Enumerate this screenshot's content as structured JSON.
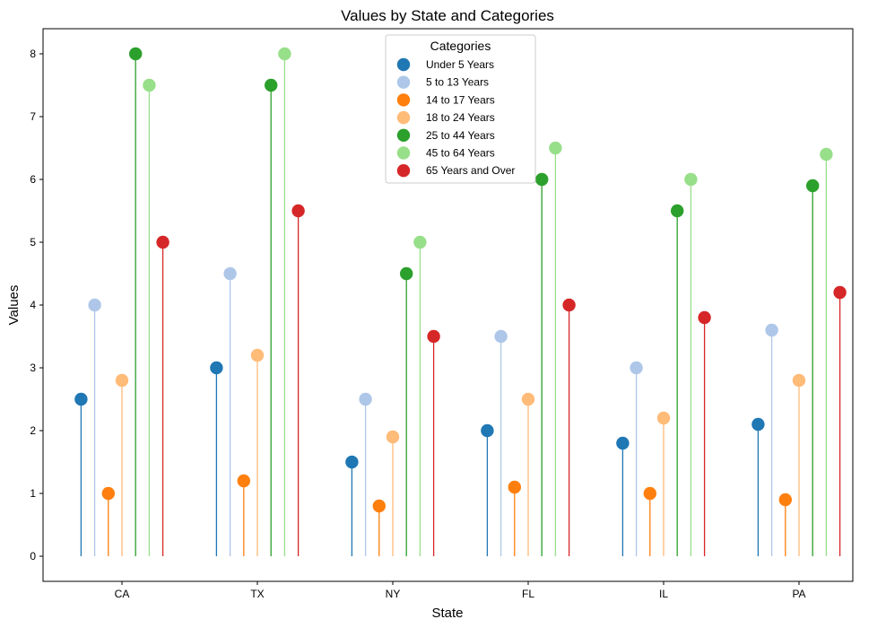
{
  "chart_data": {
    "type": "lollipop",
    "title": "Values by State and Categories",
    "xlabel": "State",
    "ylabel": "Values",
    "ylim": [
      -0.4,
      8.4
    ],
    "yticks": [
      0,
      1,
      2,
      3,
      4,
      5,
      6,
      7,
      8
    ],
    "grid": false,
    "legend": {
      "title": "Categories",
      "position": "top-center"
    },
    "categories": [
      "CA",
      "TX",
      "NY",
      "FL",
      "IL",
      "PA"
    ],
    "series": [
      {
        "name": "Under 5 Years",
        "color": "#1f77b4",
        "values": [
          2.5,
          3.0,
          1.5,
          2.0,
          1.8,
          2.1
        ]
      },
      {
        "name": "5 to 13 Years",
        "color": "#aec7e8",
        "values": [
          4.0,
          4.5,
          2.5,
          3.5,
          3.0,
          3.6
        ]
      },
      {
        "name": "14 to 17 Years",
        "color": "#ff7f0e",
        "values": [
          1.0,
          1.2,
          0.8,
          1.1,
          1.0,
          0.9
        ]
      },
      {
        "name": "18 to 24 Years",
        "color": "#ffbb78",
        "values": [
          2.8,
          3.2,
          1.9,
          2.5,
          2.2,
          2.8
        ]
      },
      {
        "name": "25 to 44 Years",
        "color": "#2ca02c",
        "values": [
          8.0,
          7.5,
          4.5,
          6.0,
          5.5,
          5.9
        ]
      },
      {
        "name": "45 to 64 Years",
        "color": "#98df8a",
        "values": [
          7.5,
          8.0,
          5.0,
          6.5,
          6.0,
          6.4
        ]
      },
      {
        "name": "65 Years and Over",
        "color": "#d62728",
        "values": [
          5.0,
          5.5,
          3.5,
          4.0,
          3.8,
          4.2
        ]
      }
    ]
  }
}
